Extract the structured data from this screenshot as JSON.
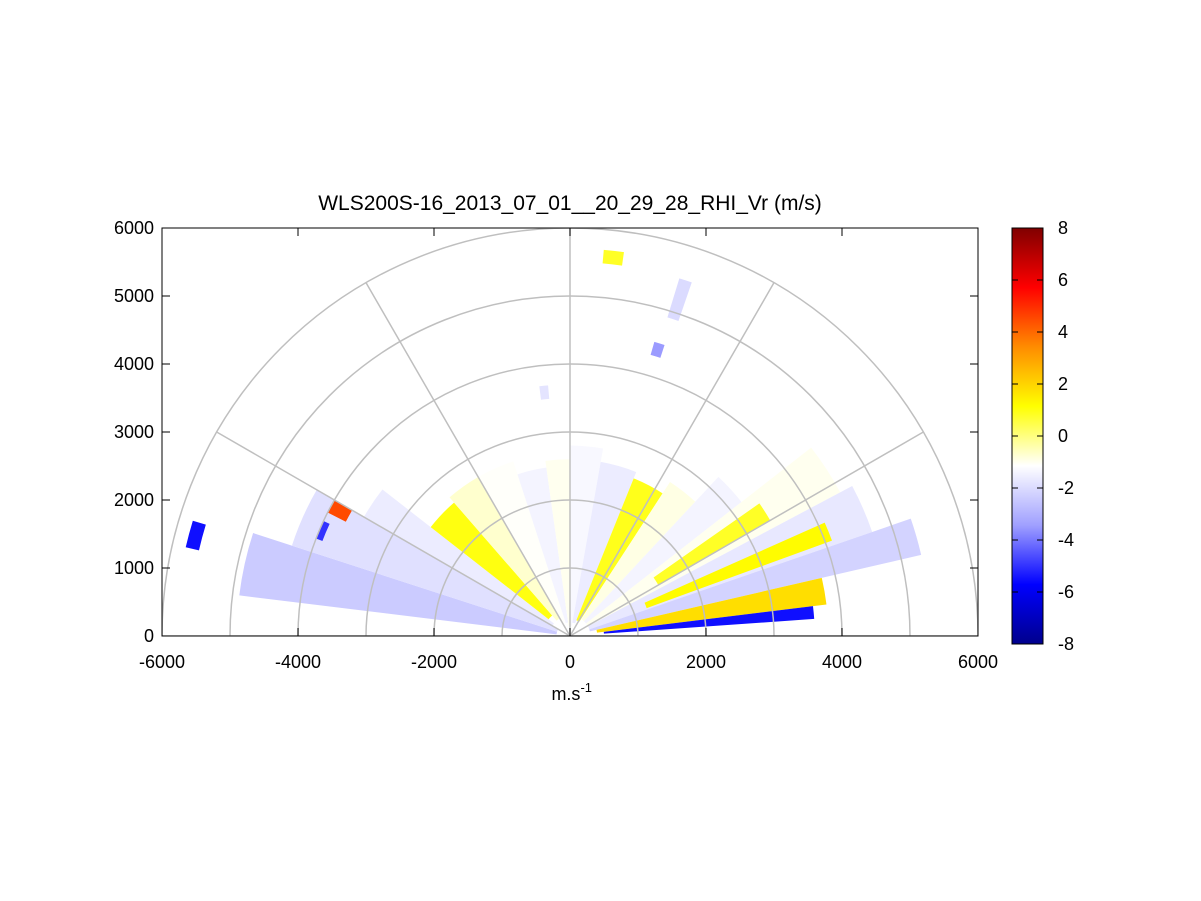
{
  "chart_data": {
    "type": "heatmap",
    "subtype": "polar-rhi-scan",
    "title": "WLS200S-16_2013_07_01__20_29_28_RHI_Vr (m/s)",
    "xlabel": "m.s",
    "xlabel_superscript": "-1",
    "ylabel": "",
    "xlim": [
      -6000,
      6000
    ],
    "ylim": [
      0,
      6000
    ],
    "x_ticks": [
      "-6000",
      "-4000",
      "-2000",
      "0",
      "2000",
      "4000",
      "6000"
    ],
    "y_ticks": [
      "0",
      "1000",
      "2000",
      "3000",
      "4000",
      "5000",
      "6000"
    ],
    "polar_grid": {
      "range_rings": [
        1000,
        2000,
        3000,
        4000,
        5000,
        6000
      ],
      "spoke_angles_deg": [
        0,
        30,
        60,
        90,
        120,
        150,
        180
      ]
    },
    "colorbar": {
      "min": -8,
      "max": 8,
      "tick_labels": [
        "8",
        "6",
        "4",
        "2",
        "0",
        "-2",
        "-4",
        "-6",
        "-8"
      ],
      "colormap": [
        "#00008c",
        "#0000ff",
        "#a0a0ff",
        "#ffffff",
        "#ffff00",
        "#ff8c00",
        "#ff0000",
        "#800000"
      ]
    },
    "units": "m/s",
    "sectors": [
      {
        "az": [
          162,
          173
        ],
        "r": [
          200,
          4900
        ],
        "v": -2.4
      },
      {
        "az": [
          150,
          162
        ],
        "r": [
          200,
          4300
        ],
        "v": -1.9
      },
      {
        "az": [
          142,
          150
        ],
        "r": [
          300,
          3500
        ],
        "v": -1.6
      },
      {
        "az": [
          131,
          142
        ],
        "r": [
          400,
          2600
        ],
        "v": 1.0
      },
      {
        "az": [
          120,
          131
        ],
        "r": [
          300,
          2700
        ],
        "v": -0.7
      },
      {
        "az": [
          108,
          120
        ],
        "r": [
          250,
          2700
        ],
        "v": -1.1
      },
      {
        "az": [
          98,
          108
        ],
        "r": [
          200,
          2500
        ],
        "v": -1.4
      },
      {
        "az": [
          90,
          98
        ],
        "r": [
          150,
          2600
        ],
        "v": -1.0
      },
      {
        "az": [
          80,
          90
        ],
        "r": [
          150,
          2800
        ],
        "v": -1.3
      },
      {
        "az": [
          68,
          80
        ],
        "r": [
          200,
          2600
        ],
        "v": -1.6
      },
      {
        "az": [
          57,
          68
        ],
        "r": [
          250,
          2500
        ],
        "v": 0.9
      },
      {
        "az": [
          47,
          57
        ],
        "r": [
          300,
          2700
        ],
        "v": -0.9
      },
      {
        "az": [
          38,
          47
        ],
        "r": [
          300,
          3200
        ],
        "v": -1.4
      },
      {
        "az": [
          28,
          38
        ],
        "r": [
          300,
          4500
        ],
        "v": -1.0
      },
      {
        "az": [
          19,
          28
        ],
        "r": [
          300,
          4700
        ],
        "v": -1.7
      },
      {
        "az": [
          13,
          19
        ],
        "r": [
          300,
          5300
        ],
        "v": -2.2
      },
      {
        "az": [
          7,
          13
        ],
        "r": [
          400,
          3800
        ],
        "v": 1.8
      },
      {
        "az": [
          4,
          7
        ],
        "r": [
          500,
          3600
        ],
        "v": -5.5
      },
      {
        "az": [
          20,
          24
        ],
        "r": [
          1200,
          4100
        ],
        "v": 1.2
      },
      {
        "az": [
          30,
          35
        ],
        "r": [
          1500,
          3400
        ],
        "v": 0.8
      },
      {
        "az": [
          150,
          153
        ],
        "r": [
          3700,
          4000
        ],
        "v": 4.5
      },
      {
        "az": [
          155,
          159
        ],
        "r": [
          3900,
          4000
        ],
        "v": -5.0
      },
      {
        "az": [
          163,
          167
        ],
        "r": [
          5600,
          5800
        ],
        "v": -5.5
      },
      {
        "az": [
          95,
          97
        ],
        "r": [
          3500,
          3700
        ],
        "v": -1.8
      },
      {
        "az": [
          82,
          85
        ],
        "r": [
          5500,
          5700
        ],
        "v": 0.8
      },
      {
        "az": [
          71,
          73
        ],
        "r": [
          4900,
          5500
        ],
        "v": -2.0
      },
      {
        "az": [
          72,
          74
        ],
        "r": [
          4300,
          4500
        ],
        "v": -3.5
      }
    ]
  }
}
